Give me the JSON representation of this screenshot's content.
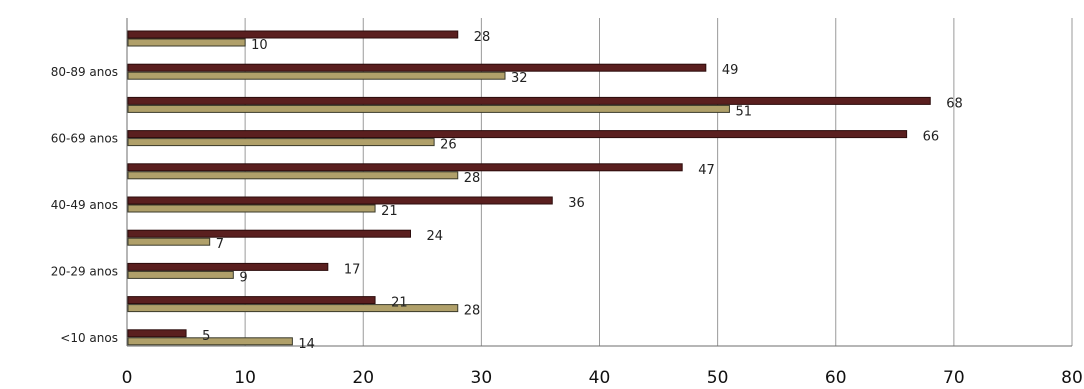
{
  "chart_data": {
    "type": "bar",
    "orientation": "horizontal",
    "categories_top_to_bottom": [
      "",
      "80-89 anos",
      "",
      "60-69 anos",
      "",
      "40-49 anos",
      "",
      "20-29 anos",
      "",
      "<10 anos"
    ],
    "series": [
      {
        "values": [
          28,
          49,
          68,
          66,
          47,
          36,
          24,
          17,
          21,
          5
        ],
        "color": "#5a1f1f"
      },
      {
        "values": [
          10,
          32,
          51,
          26,
          28,
          21,
          7,
          9,
          28,
          14
        ],
        "color": "#b0a06a"
      }
    ],
    "xlim": [
      0,
      80
    ],
    "xticks": [
      "0",
      "10",
      "20",
      "30",
      "40",
      "50",
      "60",
      "70",
      "80"
    ],
    "grid": "vertical",
    "legend": "none"
  }
}
